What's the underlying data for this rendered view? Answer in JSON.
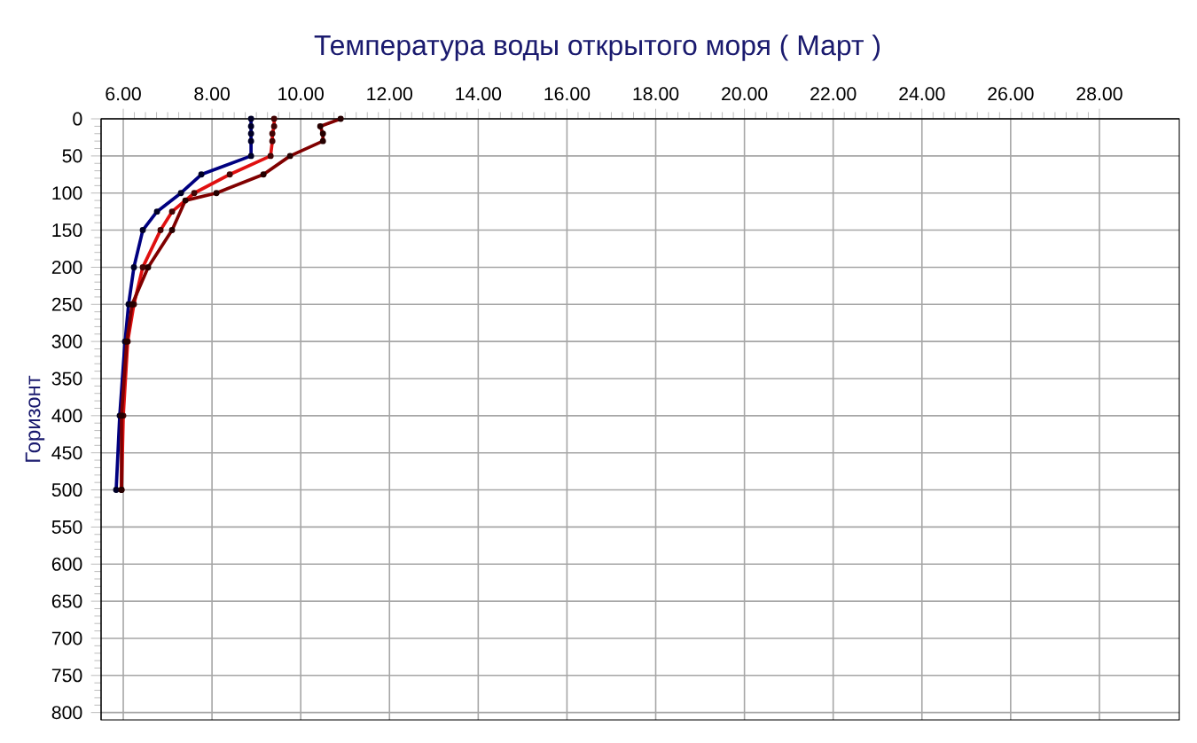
{
  "chart_data": {
    "type": "line",
    "title": "Температура воды открытого моря     ( Март )",
    "ylabel": "Горизонт",
    "series": [
      {
        "color": "#000080",
        "x": [
          8.88,
          8.88,
          8.88,
          8.88,
          8.88,
          7.76,
          7.3,
          6.76,
          6.44,
          6.24,
          6.12,
          6.04,
          5.92,
          5.84
        ],
        "values": [
          0,
          10,
          20,
          30,
          50,
          75,
          100,
          125,
          150,
          200,
          250,
          300,
          400,
          500
        ]
      },
      {
        "color": "#e01010",
        "x": [
          9.4,
          9.4,
          9.36,
          9.36,
          9.32,
          8.4,
          7.6,
          7.1,
          6.84,
          6.44,
          6.24,
          6.1,
          6.0,
          5.96
        ],
        "values": [
          0,
          10,
          20,
          30,
          50,
          75,
          100,
          125,
          150,
          200,
          250,
          300,
          400,
          500
        ]
      },
      {
        "color": "#800000",
        "x": [
          10.9,
          10.44,
          10.5,
          10.5,
          9.76,
          9.16,
          8.1,
          7.4,
          7.1,
          6.56,
          6.2,
          6.08,
          5.96,
          5.96
        ],
        "values": [
          0,
          10,
          20,
          30,
          50,
          75,
          100,
          110,
          150,
          200,
          250,
          300,
          400,
          500
        ]
      }
    ],
    "xlim": [
      5.5,
      29.8
    ],
    "ylim": [
      810,
      0
    ],
    "xticks": [
      {
        "value": 6,
        "label": "6.00"
      },
      {
        "value": 8,
        "label": "8.00"
      },
      {
        "value": 10,
        "label": "10.00"
      },
      {
        "value": 12,
        "label": "12.00"
      },
      {
        "value": 14,
        "label": "14.00"
      },
      {
        "value": 16,
        "label": "16.00"
      },
      {
        "value": 18,
        "label": "18.00"
      },
      {
        "value": 20,
        "label": "20.00"
      },
      {
        "value": 22,
        "label": "22.00"
      },
      {
        "value": 24,
        "label": "24.00"
      },
      {
        "value": 26,
        "label": "26.00"
      },
      {
        "value": 28,
        "label": "28.00"
      }
    ],
    "yticks": [
      0,
      50,
      100,
      150,
      200,
      250,
      300,
      350,
      400,
      450,
      500,
      550,
      600,
      650,
      700,
      750,
      800
    ],
    "grid": true,
    "marker": "circle",
    "line_style": "solid"
  }
}
